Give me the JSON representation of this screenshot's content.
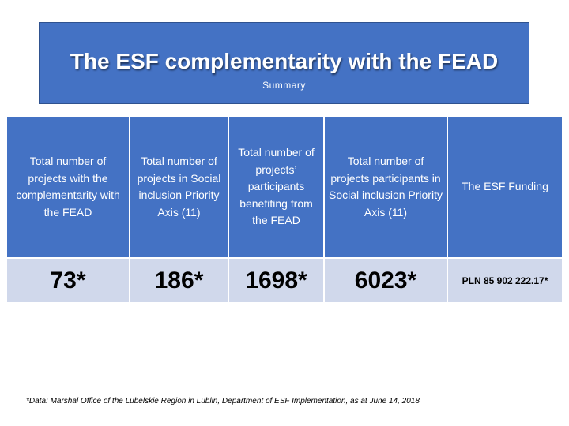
{
  "title": "The ESF complementarity with the FEAD",
  "subtitle": "Summary",
  "table": {
    "headers": [
      "Total number of projects with the complementarity with the FEAD",
      "Total number of projects in Social inclusion Priority Axis (11)",
      "Total number of projects’ participants benefiting from the FEAD",
      "Total number of projects participants in Social inclusion Priority Axis (11)",
      "The ESF Funding"
    ],
    "values": [
      "73*",
      "186*",
      "1698*",
      "6023*",
      "PLN 85 902 222.17*"
    ]
  },
  "footnote": "*Data: Marshal Office of the Lubelskie Region in Lublin, Department of ESF Implementation, as at June 14, 2018",
  "colors": {
    "header_bg": "#4472c4",
    "value_bg": "#d0d8eb",
    "text_light": "#ffffff"
  }
}
